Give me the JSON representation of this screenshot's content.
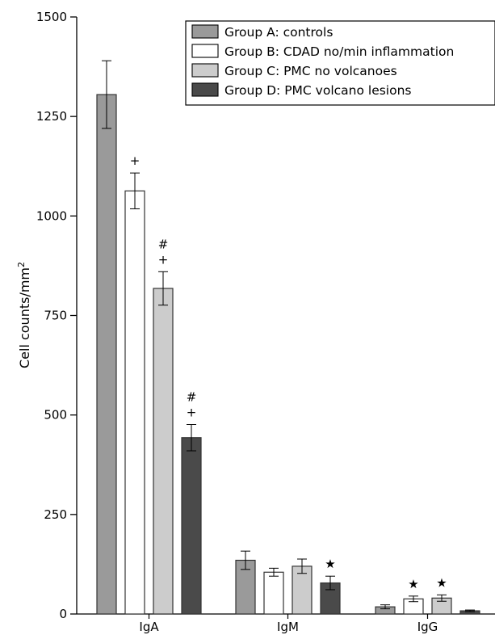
{
  "chart_data": {
    "type": "bar",
    "title": "",
    "xlabel": "",
    "ylabel": "Cell counts/mm",
    "ylabel_superscript": "2",
    "ylim": [
      0,
      1500
    ],
    "yticks": [
      "0",
      "250",
      "500",
      "750",
      "1000",
      "1250",
      "1500"
    ],
    "categories": [
      "IgA",
      "IgM",
      "IgG"
    ],
    "legend_position": "top-right",
    "series": [
      {
        "name": "Group A: controls",
        "color": "#9a9a9a",
        "values": [
          1305,
          135,
          18
        ],
        "errors": [
          85,
          23,
          5
        ],
        "markers": [
          "",
          "",
          ""
        ]
      },
      {
        "name": "Group B: CDAD no/min inflammation",
        "color": "#ffffff",
        "values": [
          1063,
          105,
          38
        ],
        "errors": [
          45,
          10,
          7
        ],
        "markers": [
          "+",
          "",
          "★"
        ]
      },
      {
        "name": "Group C: PMC no volcanoes",
        "color": "#cccccc",
        "values": [
          818,
          120,
          40
        ],
        "errors": [
          42,
          18,
          8
        ],
        "markers": [
          "#+",
          "",
          "★"
        ]
      },
      {
        "name": "Group D: PMC volcano lesions",
        "color": "#4a4a4a",
        "values": [
          443,
          78,
          8
        ],
        "errors": [
          33,
          17,
          2
        ],
        "markers": [
          "#+",
          "★",
          ""
        ]
      }
    ]
  }
}
